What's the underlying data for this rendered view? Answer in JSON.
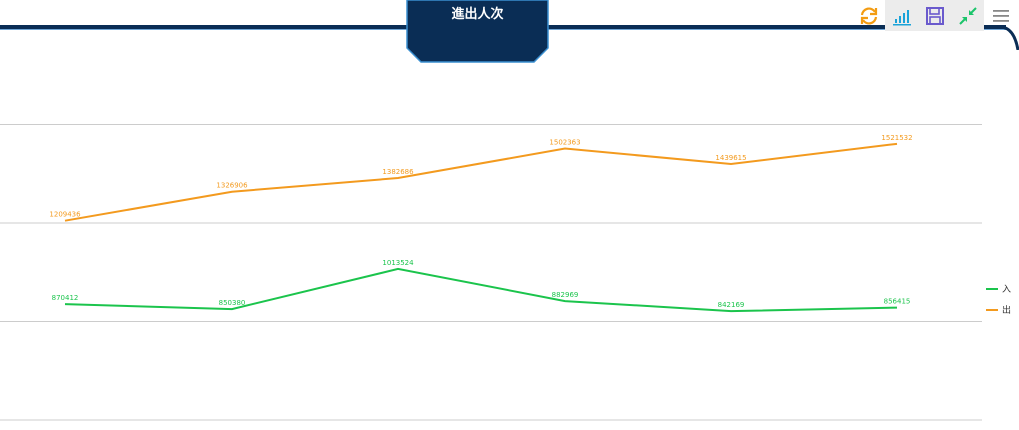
{
  "header": {
    "title": "進出人次"
  },
  "toolbar": {
    "buttons": [
      {
        "name": "refresh-icon",
        "color": "#f39c12"
      },
      {
        "name": "bar-chart-icon",
        "color": "#1aa3d9"
      },
      {
        "name": "save-icon",
        "color": "#6a5acd"
      },
      {
        "name": "collapse-icon",
        "color": "#1bc46a"
      },
      {
        "name": "menu-icon",
        "color": "#888888"
      }
    ]
  },
  "chart_data": {
    "type": "line",
    "title": "進出人次",
    "categories": [
      "",
      "",
      "",
      "",
      "",
      ""
    ],
    "ylim": [
      400000,
      2000000
    ],
    "grid": true,
    "legend_position": "right",
    "series": [
      {
        "name": "入",
        "color": "#1bc44c",
        "values": [
          870412,
          850380,
          1013524,
          882969,
          842169,
          856415
        ]
      },
      {
        "name": "出",
        "color": "#f39a1e",
        "values": [
          1209436,
          1326906,
          1382686,
          1502363,
          1439615,
          1521532
        ]
      }
    ]
  }
}
